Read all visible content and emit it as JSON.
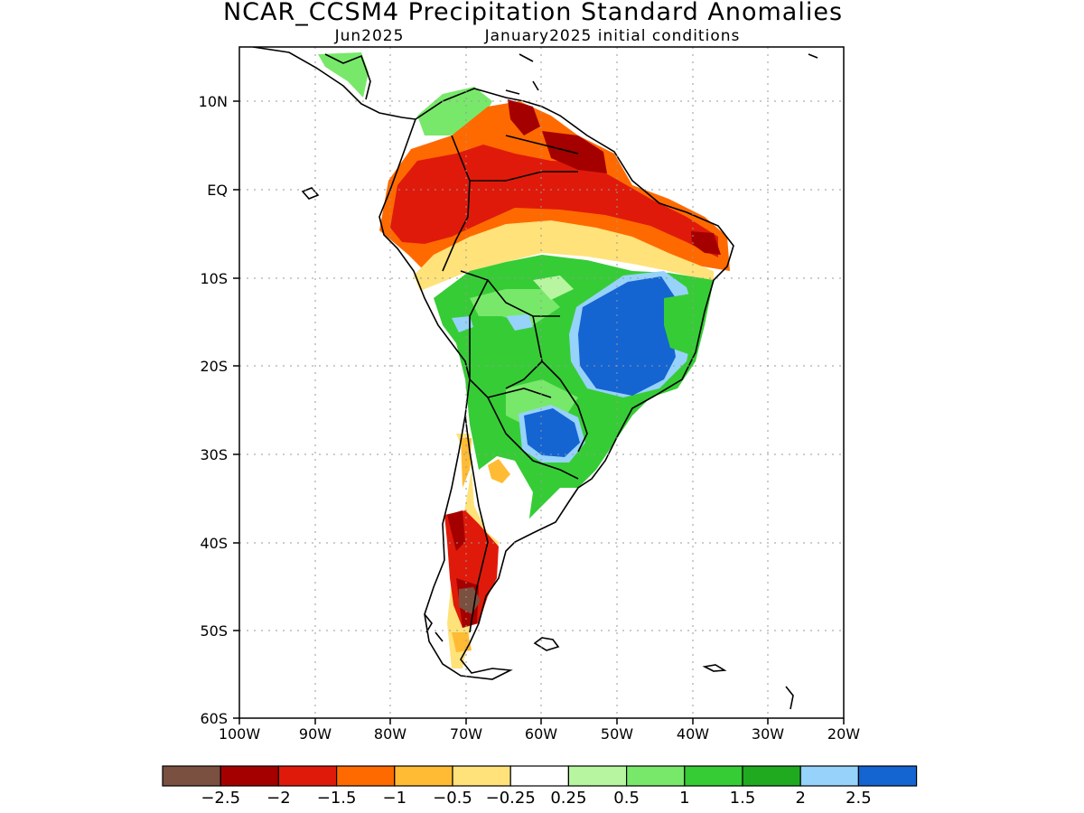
{
  "header": {
    "title": "NCAR_CCSM4 Precipitation Standard Anomalies",
    "subtitle_left": "Jun2025",
    "subtitle_right": "January2025 initial conditions"
  },
  "axes": {
    "lat_ticks": [
      "10N",
      "EQ",
      "10S",
      "20S",
      "30S",
      "40S",
      "50S",
      "60S"
    ],
    "lon_ticks": [
      "100W",
      "90W",
      "80W",
      "70W",
      "60W",
      "50W",
      "40W",
      "30W",
      "20W"
    ],
    "grid": "dotted"
  },
  "colorbar": {
    "colors": [
      "#7a5040",
      "#a50000",
      "#e01a0a",
      "#ff6a00",
      "#ffbb33",
      "#ffe27a",
      "#ffffff",
      "#b8f5a0",
      "#78e86a",
      "#36cc36",
      "#1faa1f",
      "#96d2fa",
      "#1464d2"
    ],
    "tick_labels": [
      "−2.5",
      "−2",
      "−1.5",
      "−1",
      "−0.5",
      "−0.25",
      "0.25",
      "0.5",
      "1",
      "1.5",
      "2",
      "2.5"
    ]
  },
  "field_colors": {
    "land_outline": "#000000",
    "dry_extreme": "#7a5040",
    "dry_strong": "#a50000",
    "dry": "#e01a0a",
    "dry_moderate": "#ff6a00",
    "dry_light": "#ffbb33",
    "dry_slight": "#ffe27a",
    "wet_slight": "#b8f5a0",
    "wet_light": "#78e86a",
    "wet": "#36cc36",
    "wet_strong": "#1faa1f",
    "wet_very": "#96d2fa",
    "wet_extreme": "#1464d2"
  }
}
